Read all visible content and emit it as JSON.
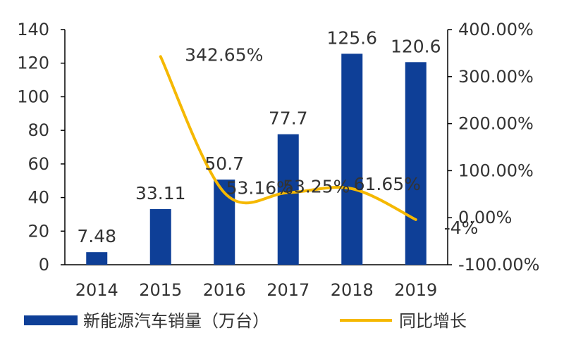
{
  "colors": {
    "bar": "#0E3F97",
    "line": "#F5B800",
    "axis": "#000000",
    "text": "#333333"
  },
  "chart_data": {
    "type": "bar",
    "categories": [
      "2014",
      "2015",
      "2016",
      "2017",
      "2018",
      "2019"
    ],
    "grid": false,
    "legend_position": "bottom",
    "series": [
      {
        "name": "新能源汽车销量（万台）",
        "type": "bar",
        "axis": "left",
        "values": [
          7.48,
          33.11,
          50.7,
          77.7,
          125.6,
          120.6
        ],
        "labels": [
          "7.48",
          "33.11",
          "50.7",
          "77.7",
          "125.6",
          "120.6"
        ]
      },
      {
        "name": "同比增长",
        "type": "line",
        "axis": "right",
        "values": [
          null,
          342.65,
          53.16,
          53.25,
          61.65,
          -4
        ],
        "labels": [
          "",
          "342.65%",
          "53.16%",
          "53.25%",
          "61.65%",
          "-4%"
        ]
      }
    ],
    "y_left": {
      "min": 0,
      "max": 140,
      "ticks": [
        "0",
        "20",
        "40",
        "60",
        "80",
        "100",
        "120",
        "140"
      ]
    },
    "y_right": {
      "min": -100,
      "max": 400,
      "ticks": [
        "-100.00%",
        "0.00%",
        "100.00%",
        "200.00%",
        "300.00%",
        "400.00%"
      ]
    }
  }
}
